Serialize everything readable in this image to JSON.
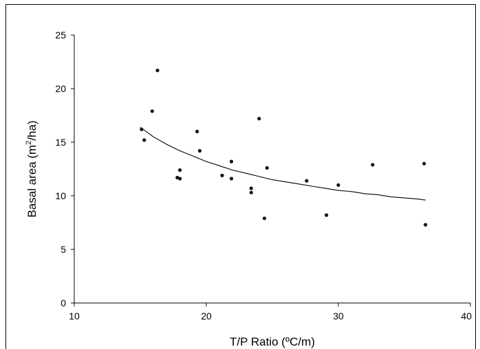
{
  "chart_data": {
    "type": "scatter",
    "title": "",
    "xlabel": "T/P Ratio (ºC/m)",
    "ylabel_main": "Basal area (m",
    "ylabel_sup": "2",
    "ylabel_tail": "/ha)",
    "xlim": [
      10,
      40
    ],
    "ylim": [
      0,
      25
    ],
    "xticks": [
      10,
      20,
      30,
      40
    ],
    "yticks": [
      0,
      5,
      10,
      15,
      20,
      25
    ],
    "grid": false,
    "series": [
      {
        "points": [
          [
            15.1,
            16.2
          ],
          [
            15.3,
            15.2
          ],
          [
            15.9,
            17.9
          ],
          [
            16.3,
            21.7
          ],
          [
            17.8,
            11.7
          ],
          [
            18.0,
            11.6
          ],
          [
            18.0,
            12.4
          ],
          [
            19.3,
            16.0
          ],
          [
            19.5,
            14.2
          ],
          [
            21.2,
            11.9
          ],
          [
            21.9,
            11.6
          ],
          [
            21.9,
            13.2
          ],
          [
            23.4,
            10.7
          ],
          [
            23.4,
            10.3
          ],
          [
            24.0,
            17.2
          ],
          [
            24.4,
            7.9
          ],
          [
            24.6,
            12.6
          ],
          [
            27.6,
            11.4
          ],
          [
            29.1,
            8.2
          ],
          [
            30.0,
            11.0
          ],
          [
            32.6,
            12.9
          ],
          [
            36.5,
            13.0
          ],
          [
            36.6,
            7.3
          ]
        ]
      }
    ],
    "fit_curve": [
      [
        15.0,
        16.4
      ],
      [
        16.0,
        15.5
      ],
      [
        17.0,
        14.8
      ],
      [
        18.0,
        14.2
      ],
      [
        19.0,
        13.7
      ],
      [
        20.0,
        13.2
      ],
      [
        21.0,
        12.8
      ],
      [
        22.0,
        12.4
      ],
      [
        23.0,
        12.1
      ],
      [
        24.0,
        11.8
      ],
      [
        25.0,
        11.5
      ],
      [
        26.0,
        11.3
      ],
      [
        27.0,
        11.1
      ],
      [
        28.0,
        10.9
      ],
      [
        29.0,
        10.7
      ],
      [
        30.0,
        10.5
      ],
      [
        31.0,
        10.4
      ],
      [
        32.0,
        10.2
      ],
      [
        33.0,
        10.1
      ],
      [
        34.0,
        9.9
      ],
      [
        35.0,
        9.8
      ],
      [
        36.0,
        9.7
      ],
      [
        36.6,
        9.6
      ]
    ]
  }
}
